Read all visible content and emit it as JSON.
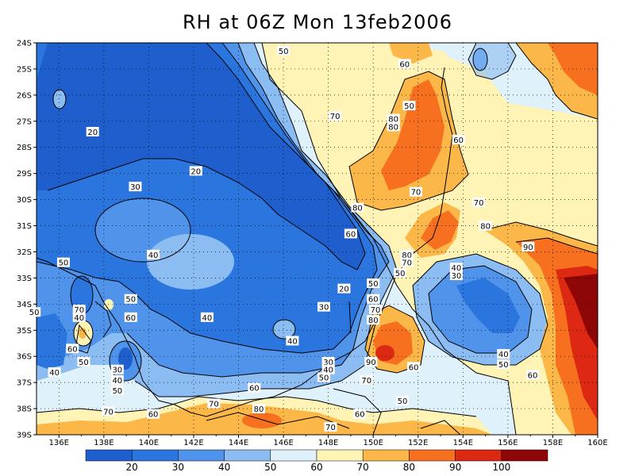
{
  "title": "RH at 06Z Mon 13feb2006",
  "map": {
    "x_ticks": [
      "136E",
      "138E",
      "140E",
      "142E",
      "144E",
      "146E",
      "148E",
      "150E",
      "152E",
      "154E",
      "156E",
      "158E",
      "160E"
    ],
    "y_ticks": [
      "24S",
      "25S",
      "26S",
      "27S",
      "28S",
      "29S",
      "30S",
      "31S",
      "32S",
      "33S",
      "34S",
      "35S",
      "36S",
      "37S",
      "38S",
      "39S"
    ],
    "contour_labels": [
      {
        "text": "50",
        "lon": 146.0,
        "lat": -24.3
      },
      {
        "text": "60",
        "lon": 151.4,
        "lat": -24.8
      },
      {
        "text": "50",
        "lon": 151.6,
        "lat": -26.4
      },
      {
        "text": "60",
        "lon": 153.8,
        "lat": -27.7
      },
      {
        "text": "70",
        "lon": 148.3,
        "lat": -26.8
      },
      {
        "text": "80",
        "lon": 150.9,
        "lat": -26.9
      },
      {
        "text": "80",
        "lon": 150.9,
        "lat": -27.2
      },
      {
        "text": "20",
        "lon": 137.5,
        "lat": -27.4
      },
      {
        "text": "20",
        "lon": 142.1,
        "lat": -28.9
      },
      {
        "text": "30",
        "lon": 139.4,
        "lat": -29.5
      },
      {
        "text": "70",
        "lon": 151.9,
        "lat": -29.7
      },
      {
        "text": "70",
        "lon": 154.7,
        "lat": -30.1
      },
      {
        "text": "80",
        "lon": 149.3,
        "lat": -30.3
      },
      {
        "text": "80",
        "lon": 155.0,
        "lat": -31.0
      },
      {
        "text": "60",
        "lon": 149.0,
        "lat": -31.3
      },
      {
        "text": "90",
        "lon": 156.9,
        "lat": -31.8
      },
      {
        "text": "80",
        "lon": 151.5,
        "lat": -32.1
      },
      {
        "text": "70",
        "lon": 151.5,
        "lat": -32.4
      },
      {
        "text": "40",
        "lon": 153.7,
        "lat": -32.6
      },
      {
        "text": "30",
        "lon": 153.7,
        "lat": -32.9
      },
      {
        "text": "50",
        "lon": 151.2,
        "lat": -32.8
      },
      {
        "text": "40",
        "lon": 140.2,
        "lat": -32.1
      },
      {
        "text": "50",
        "lon": 136.2,
        "lat": -32.4
      },
      {
        "text": "20",
        "lon": 148.7,
        "lat": -33.4
      },
      {
        "text": "50",
        "lon": 150.0,
        "lat": -33.2
      },
      {
        "text": "60",
        "lon": 150.0,
        "lat": -33.8
      },
      {
        "text": "70",
        "lon": 150.1,
        "lat": -34.2
      },
      {
        "text": "80",
        "lon": 150.0,
        "lat": -34.6
      },
      {
        "text": "50",
        "lon": 139.2,
        "lat": -33.8
      },
      {
        "text": "30",
        "lon": 147.8,
        "lat": -34.1
      },
      {
        "text": "50",
        "lon": 134.9,
        "lat": -34.3
      },
      {
        "text": "70",
        "lon": 136.9,
        "lat": -34.2
      },
      {
        "text": "40",
        "lon": 136.9,
        "lat": -34.5
      },
      {
        "text": "40",
        "lon": 142.6,
        "lat": -34.5
      },
      {
        "text": "60",
        "lon": 139.2,
        "lat": -34.5
      },
      {
        "text": "40",
        "lon": 146.4,
        "lat": -35.4
      },
      {
        "text": "60",
        "lon": 136.6,
        "lat": -35.7
      },
      {
        "text": "50",
        "lon": 137.1,
        "lat": -36.2
      },
      {
        "text": "30",
        "lon": 148.0,
        "lat": -36.2
      },
      {
        "text": "40",
        "lon": 148.0,
        "lat": -36.5
      },
      {
        "text": "40",
        "lon": 155.8,
        "lat": -35.9
      },
      {
        "text": "50",
        "lon": 155.8,
        "lat": -36.3
      },
      {
        "text": "90",
        "lon": 149.9,
        "lat": -36.2
      },
      {
        "text": "60",
        "lon": 151.8,
        "lat": -36.4
      },
      {
        "text": "50",
        "lon": 147.8,
        "lat": -36.8
      },
      {
        "text": "70",
        "lon": 149.7,
        "lat": -36.9
      },
      {
        "text": "60",
        "lon": 157.1,
        "lat": -36.7
      },
      {
        "text": "30",
        "lon": 138.6,
        "lat": -36.5
      },
      {
        "text": "40",
        "lon": 138.6,
        "lat": -36.9
      },
      {
        "text": "50",
        "lon": 138.6,
        "lat": -37.3
      },
      {
        "text": "40",
        "lon": 135.8,
        "lat": -36.6
      },
      {
        "text": "60",
        "lon": 144.7,
        "lat": -37.2
      },
      {
        "text": "70",
        "lon": 142.9,
        "lat": -37.8
      },
      {
        "text": "50",
        "lon": 151.3,
        "lat": -37.7
      },
      {
        "text": "70",
        "lon": 138.2,
        "lat": -38.1
      },
      {
        "text": "60",
        "lon": 140.2,
        "lat": -38.2
      },
      {
        "text": "80",
        "lon": 144.9,
        "lat": -38.0
      },
      {
        "text": "60",
        "lon": 149.4,
        "lat": -38.2
      },
      {
        "text": "70",
        "lon": 148.1,
        "lat": -38.7
      }
    ]
  },
  "legend": {
    "labels": [
      "20",
      "30",
      "40",
      "50",
      "60",
      "70",
      "80",
      "90",
      "100"
    ],
    "colors": [
      "#1e5fcd",
      "#2b75df",
      "#4f93ea",
      "#8cbdf2",
      "#dff1fb",
      "#fff3b5",
      "#fbb848",
      "#f6701f",
      "#dd2813",
      "#8f0606"
    ]
  }
}
